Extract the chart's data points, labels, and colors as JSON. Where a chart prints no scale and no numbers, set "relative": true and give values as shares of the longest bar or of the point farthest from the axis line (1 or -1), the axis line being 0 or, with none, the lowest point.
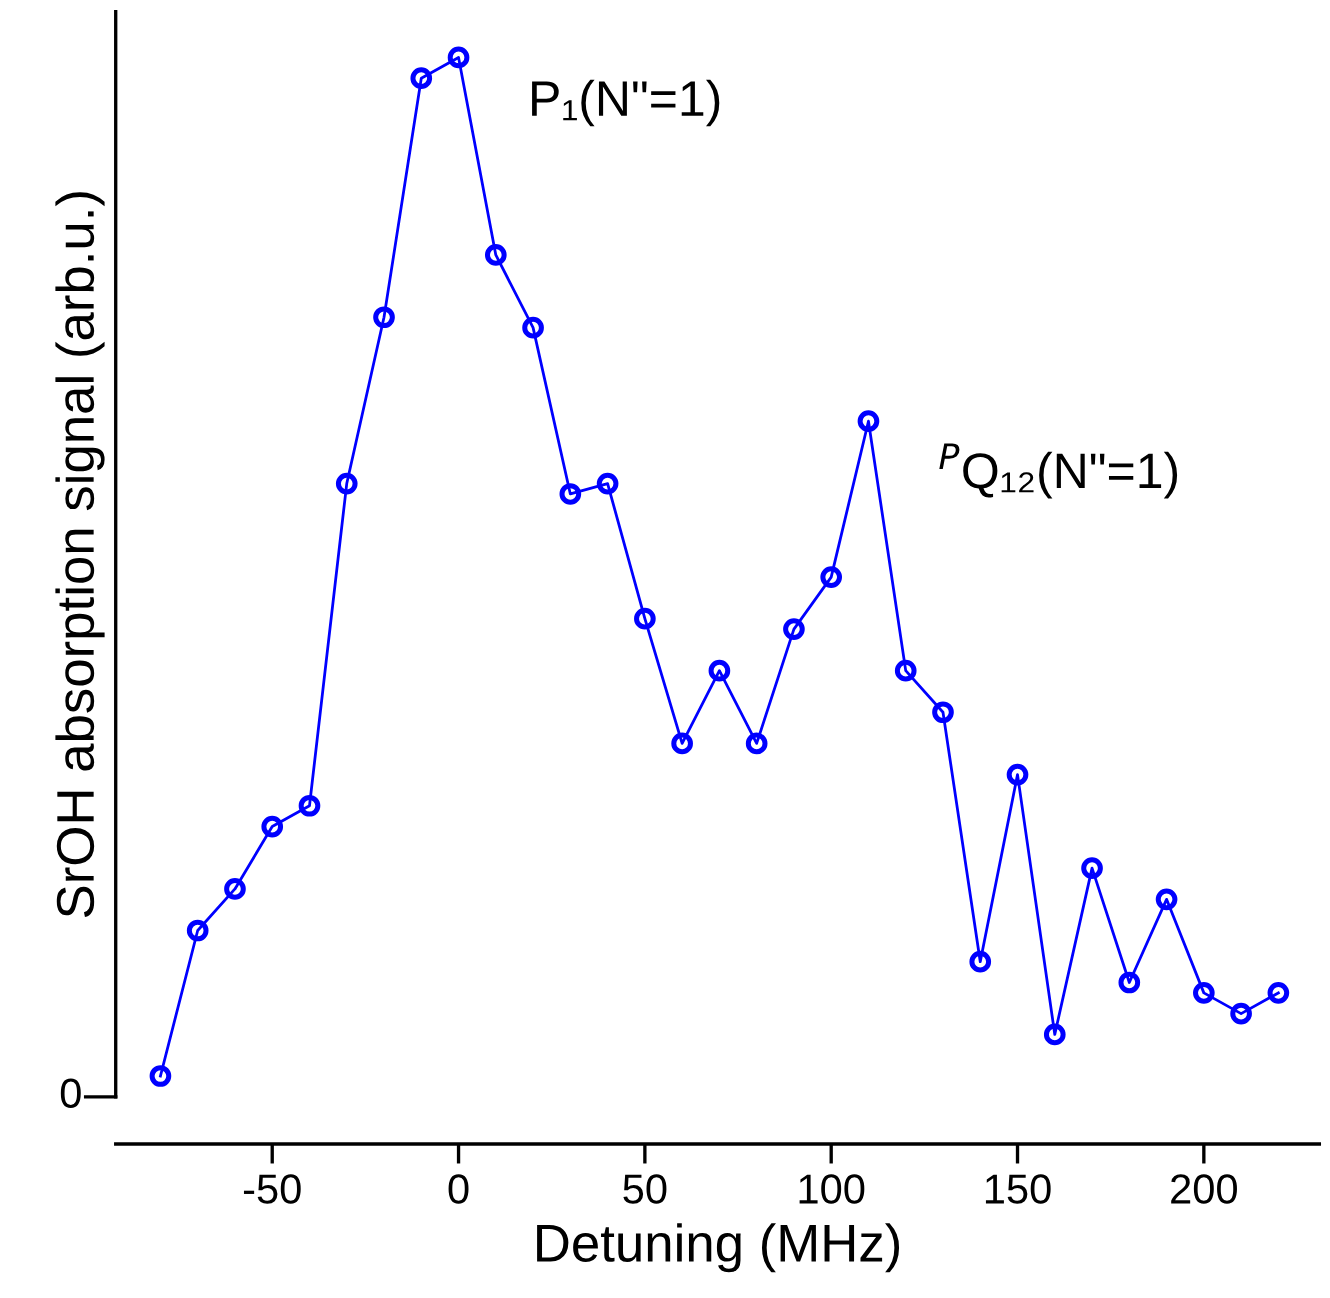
{
  "chart_data": {
    "type": "line",
    "relative": true,
    "xlabel": "Detuning (MHz)",
    "ylabel": "SrOH absorption signal (arb.u.)",
    "x": [
      -80,
      -70,
      -60,
      -50,
      -40,
      -30,
      -20,
      -10,
      0,
      10,
      20,
      30,
      40,
      50,
      60,
      70,
      80,
      90,
      100,
      110,
      120,
      130,
      140,
      150,
      160,
      170,
      180,
      190,
      200,
      210,
      220
    ],
    "series": [
      {
        "color": "#0000ff",
        "values": [
          0.02,
          0.16,
          0.2,
          0.26,
          0.28,
          0.59,
          0.75,
          0.98,
          1,
          0.81,
          0.74,
          0.58,
          0.59,
          0.46,
          0.34,
          0.41,
          0.34,
          0.45,
          0.5,
          0.65,
          0.41,
          0.37,
          0.13,
          0.31,
          0.06,
          0.22,
          0.11,
          0.19,
          0.1,
          0.08,
          0.1
        ]
      }
    ],
    "xlim": [
      -92,
      231
    ],
    "xticks": [
      -50,
      0,
      50,
      100,
      150,
      200
    ],
    "marker": "circle",
    "line_style": "solid",
    "grid": false,
    "legend": false,
    "annotations": [
      {
        "text": "P₁(N\"=1)",
        "x": 0,
        "y": 1
      },
      {
        "text": "$^{P}$Q₁₂(N\"=1)",
        "x": 110,
        "y": 0.65
      },
      "0"
    ]
  }
}
